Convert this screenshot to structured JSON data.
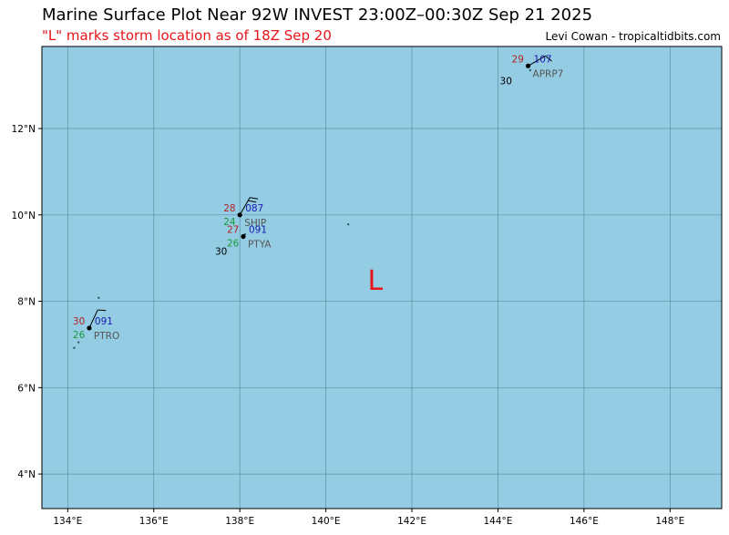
{
  "header": {
    "title": "Marine Surface Plot Near 92W INVEST 23:00Z–00:30Z Sep 21 2025",
    "subtitle": "\"L\" marks storm location as of 18Z Sep 20",
    "credit": "Levi Cowan - tropicaltidbits.com"
  },
  "map": {
    "lon_range": [
      133.4,
      149.2
    ],
    "lat_range": [
      3.2,
      13.9
    ],
    "ocean_color": "#94cde3",
    "grid_color": "#4a7c93",
    "lon_ticks": [
      {
        "value": 134,
        "label": "134°E"
      },
      {
        "value": 136,
        "label": "136°E"
      },
      {
        "value": 138,
        "label": "138°E"
      },
      {
        "value": 140,
        "label": "140°E"
      },
      {
        "value": 142,
        "label": "142°E"
      },
      {
        "value": 144,
        "label": "144°E"
      },
      {
        "value": 146,
        "label": "146°E"
      },
      {
        "value": 148,
        "label": "148°E"
      }
    ],
    "lat_ticks": [
      {
        "value": 4,
        "label": "4°N"
      },
      {
        "value": 6,
        "label": "6°N"
      },
      {
        "value": 8,
        "label": "8°N"
      },
      {
        "value": 10,
        "label": "10°N"
      },
      {
        "value": 12,
        "label": "12°N"
      }
    ],
    "storm_marker": {
      "text": "L",
      "lon": 141.15,
      "lat": 8.5,
      "color": "#e8141a"
    },
    "colors": {
      "temperature": "#b22222",
      "dewpoint": "#1a9a3a",
      "pressure": "#1a1ab0",
      "station": "#555555",
      "extra": "#000000"
    },
    "stations": [
      {
        "id": "SHIP",
        "lon": 138.0,
        "lat": 10.0,
        "temp": "28",
        "dewpoint": "24",
        "pressure": "087",
        "extra": "",
        "barb_dir": 30,
        "barb_flags": 2
      },
      {
        "id": "PTYA",
        "lon": 138.08,
        "lat": 9.5,
        "temp": "27",
        "dewpoint": "26",
        "pressure": "091",
        "extra": "30",
        "barb_dir": 0,
        "barb_flags": 0
      },
      {
        "id": "PTRO",
        "lon": 134.5,
        "lat": 7.38,
        "temp": "30",
        "dewpoint": "26",
        "pressure": "091",
        "extra": "",
        "barb_dir": 25,
        "barb_flags": 1
      },
      {
        "id": "APRP7",
        "lon": 144.7,
        "lat": 13.45,
        "temp": "29",
        "dewpoint": "",
        "pressure": "107",
        "extra": "30",
        "barb_dir": 60,
        "barb_flags": 1
      }
    ],
    "islands": [
      {
        "name": "yap",
        "lon": 138.12,
        "lat": 9.55
      },
      {
        "name": "ngulu",
        "lon": 140.52,
        "lat": 9.78
      },
      {
        "name": "kayangel",
        "lon": 134.72,
        "lat": 8.08
      },
      {
        "name": "palau-south-1",
        "lon": 134.25,
        "lat": 7.05
      },
      {
        "name": "palau-south-2",
        "lon": 134.15,
        "lat": 6.92
      },
      {
        "name": "guam",
        "lon": 144.75,
        "lat": 13.35
      }
    ]
  }
}
